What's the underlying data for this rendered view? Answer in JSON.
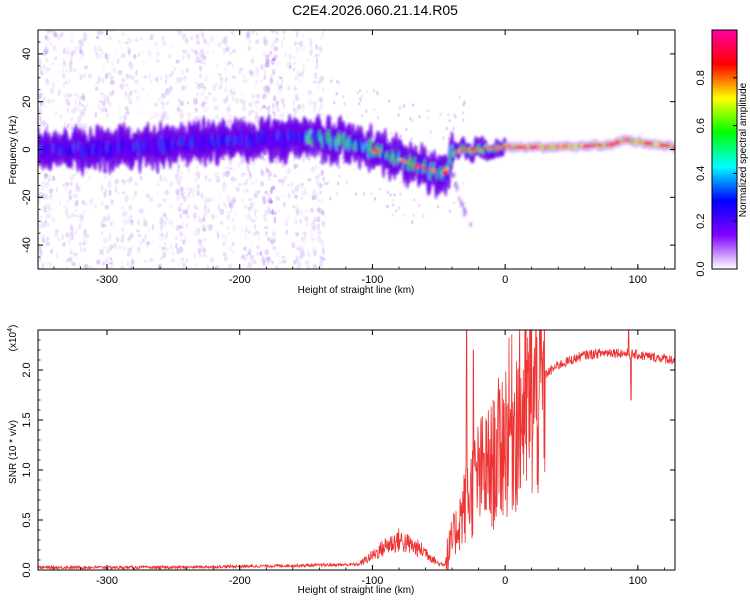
{
  "title": "C2E4.2026.060.21.14.R05",
  "chart_data": [
    {
      "type": "heatmap",
      "name": "spectrogram",
      "xlabel": "Height of straight line (km)",
      "ylabel": "Frequency (Hz)",
      "xlim": [
        -352,
        128
      ],
      "ylim": [
        -50,
        50
      ],
      "xticks": [
        -300,
        -200,
        -100,
        0,
        100
      ],
      "yticks": [
        -40,
        -20,
        0,
        20,
        40
      ],
      "ridge": {
        "x": [
          -352,
          -300,
          -250,
          -200,
          -160,
          -140,
          -120,
          -100,
          -80,
          -60,
          -45,
          -40,
          -30,
          -20,
          -10,
          0,
          40,
          80,
          90,
          128
        ],
        "freq": [
          0,
          0,
          2,
          4,
          5,
          5,
          3,
          0,
          -4,
          -8,
          -10,
          -2,
          0,
          0,
          1,
          1,
          1,
          2,
          4,
          1
        ]
      },
      "colorbar": {
        "label": "Normalized spectral amplitude",
        "range": [
          0,
          1
        ],
        "ticks": [
          "0.0",
          "0.2",
          "0.4",
          "0.6",
          "0.8"
        ],
        "tick_values": [
          0,
          0.2,
          0.4,
          0.6,
          0.8
        ],
        "colors": [
          "#ffffff",
          "#8000ff",
          "#0000ff",
          "#00ffff",
          "#00ff00",
          "#ffff00",
          "#ff0000",
          "#ff00a0"
        ]
      }
    },
    {
      "type": "line",
      "name": "snr",
      "xlabel": "Height of straight line (km)",
      "ylabel": "SNR (10 * v/v)",
      "scale_label": "(x10",
      "scale_exponent": "4",
      "scale_suffix": ")",
      "xlim": [
        -352,
        128
      ],
      "ylim": [
        0,
        2.4
      ],
      "xticks": [
        -300,
        -200,
        -100,
        0,
        100
      ],
      "yticks": [
        0.0,
        0.5,
        1.0,
        1.5,
        2.0
      ],
      "ytick_labels": [
        "0.0",
        "0.5",
        "1.0",
        "1.5",
        "2.0"
      ],
      "color": "#ee3333",
      "envelope": {
        "x": [
          -352,
          -250,
          -200,
          -150,
          -110,
          -100,
          -90,
          -80,
          -70,
          -60,
          -50,
          -45,
          -40,
          -30,
          -20,
          -10,
          -5,
          0,
          10,
          20,
          30,
          40,
          60,
          80,
          100,
          128
        ],
        "y": [
          0.02,
          0.02,
          0.03,
          0.04,
          0.05,
          0.12,
          0.2,
          0.25,
          0.2,
          0.15,
          0.05,
          0.05,
          0.3,
          0.7,
          1.0,
          1.1,
          1.25,
          1.45,
          1.65,
          1.8,
          1.95,
          2.05,
          2.15,
          2.18,
          2.15,
          2.1
        ]
      },
      "notable_spikes": [
        {
          "x": -29,
          "y": 2.4
        },
        {
          "x": -24,
          "y": 2.2
        },
        {
          "x": 93,
          "y": 2.4
        },
        {
          "x": 95,
          "y": 1.7
        }
      ]
    }
  ]
}
